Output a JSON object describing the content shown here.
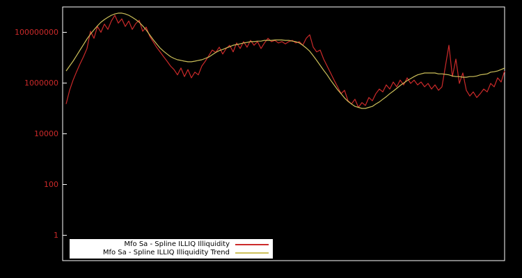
{
  "colors": {
    "background": "#000000",
    "plot_border": "#ffffff",
    "legend_background": "#ffffff",
    "legend_text": "#000000"
  },
  "chart_data": {
    "type": "line",
    "title": "",
    "xlabel": "",
    "ylabel": "",
    "y_scale": "log",
    "ylim": [
      0.1,
      1000000000
    ],
    "grid": false,
    "legend_position": "bottom-inside",
    "axis_label_color": "#cc2a2a",
    "y_ticks": [
      {
        "label": "100000000",
        "value": 100000000
      },
      {
        "label": "1000000",
        "value": 1000000
      },
      {
        "label": "10000",
        "value": 10000
      },
      {
        "label": "100",
        "value": 100
      },
      {
        "label": "1",
        "value": 1
      }
    ],
    "series": [
      {
        "name": "Mfo Sa - Spline ILLIQ Illiquidity",
        "color": "#cc2a2a",
        "values": [
          150000.0,
          520000.0,
          1300000.0,
          2800000.0,
          5700000.0,
          11000000.0,
          23000000.0,
          110000000.0,
          58000000.0,
          170000000.0,
          100000000.0,
          210000000.0,
          130000000.0,
          280000000.0,
          470000000.0,
          230000000.0,
          340000000.0,
          170000000.0,
          280000000.0,
          130000000.0,
          220000000.0,
          300000000.0,
          110000000.0,
          160000000.0,
          71000000.0,
          43000000.0,
          26000000.0,
          17000000.0,
          11000000.0,
          7300000.0,
          4700000.0,
          3400000.0,
          2100000.0,
          3900000.0,
          1800000.0,
          3400000.0,
          1600000.0,
          2700000.0,
          2100000.0,
          4700000.0,
          7300000.0,
          12000000.0,
          20000000.0,
          16000000.0,
          26000000.0,
          14000000.0,
          23000000.0,
          31000000.0,
          17000000.0,
          38000000.0,
          23000000.0,
          43000000.0,
          26000000.0,
          48000000.0,
          31000000.0,
          43000000.0,
          23000000.0,
          38000000.0,
          58000000.0,
          43000000.0,
          48000000.0,
          38000000.0,
          43000000.0,
          35000000.0,
          43000000.0,
          48000000.0,
          38000000.0,
          43000000.0,
          31000000.0,
          58000000.0,
          80000000.0,
          26000000.0,
          17000000.0,
          20000000.0,
          8800000.0,
          4700000.0,
          2500000.0,
          1300000.0,
          710000.0,
          380000.0,
          520000.0,
          200000.0,
          150000.0,
          230000.0,
          110000.0,
          170000.0,
          130000.0,
          270000.0,
          200000.0,
          380000.0,
          580000.0,
          450000.0,
          850000.0,
          580000.0,
          1100000.0,
          710000.0,
          1300000.0,
          850000.0,
          1600000.0,
          970000.0,
          1300000.0,
          850000.0,
          1100000.0,
          710000.0,
          970000.0,
          580000.0,
          850000.0,
          520000.0,
          710000.0,
          4700000.0,
          31000000.0,
          1800000.0,
          8800000.0,
          970000.0,
          2500000.0,
          520000.0,
          310000.0,
          450000.0,
          270000.0,
          380000.0,
          580000.0,
          450000.0,
          970000.0,
          710000.0,
          1600000.0,
          1100000.0,
          3000000.0
        ]
      },
      {
        "name": "Mfo Sa - Spline ILLIQ Illiquidity Trend",
        "color": "#cdc05a",
        "values": [
          3000000.0,
          4700000.0,
          7300000.0,
          12000000.0,
          20000000.0,
          33000000.0,
          55000000.0,
          85000000.0,
          125000000.0,
          180000000.0,
          250000000.0,
          320000000.0,
          390000000.0,
          470000000.0,
          530000000.0,
          570000000.0,
          570000000.0,
          530000000.0,
          470000000.0,
          390000000.0,
          320000000.0,
          250000000.0,
          180000000.0,
          125000000.0,
          80000000.0,
          52000000.0,
          35000000.0,
          24000000.0,
          18000000.0,
          14000000.0,
          11000000.0,
          9400000.0,
          8300000.0,
          7800000.0,
          7300000.0,
          6900000.0,
          6900000.0,
          7300000.0,
          7800000.0,
          8300000.0,
          9400000.0,
          10600000.0,
          13000000.0,
          16000000.0,
          19000000.0,
          21000000.0,
          24000000.0,
          27000000.0,
          31000000.0,
          33000000.0,
          35000000.0,
          38000000.0,
          40000000.0,
          43000000.0,
          43000000.0,
          45000000.0,
          45000000.0,
          48000000.0,
          48000000.0,
          48000000.0,
          50000000.0,
          50000000.0,
          50000000.0,
          48000000.0,
          48000000.0,
          45000000.0,
          43000000.0,
          38000000.0,
          31000000.0,
          24000000.0,
          18000000.0,
          12000000.0,
          7800000.0,
          5000000.0,
          3200000.0,
          2100000.0,
          1300000.0,
          850000.0,
          550000.0,
          380000.0,
          260000.0,
          190000.0,
          150000.0,
          120000.0,
          110000.0,
          100000.0,
          100000.0,
          110000.0,
          120000.0,
          150000.0,
          180000.0,
          230000.0,
          290000.0,
          380000.0,
          480000.0,
          620000.0,
          800000.0,
          1000000.0,
          1250000.0,
          1500000.0,
          1800000.0,
          2100000.0,
          2300000.0,
          2500000.0,
          2500000.0,
          2500000.0,
          2500000.0,
          2300000.0,
          2300000.0,
          2200000.0,
          2100000.0,
          1900000.0,
          1800000.0,
          1800000.0,
          1700000.0,
          1700000.0,
          1800000.0,
          1800000.0,
          1900000.0,
          2100000.0,
          2200000.0,
          2300000.0,
          2700000.0,
          2800000.0,
          3000000.0,
          3400000.0,
          3900000.0
        ]
      }
    ]
  }
}
